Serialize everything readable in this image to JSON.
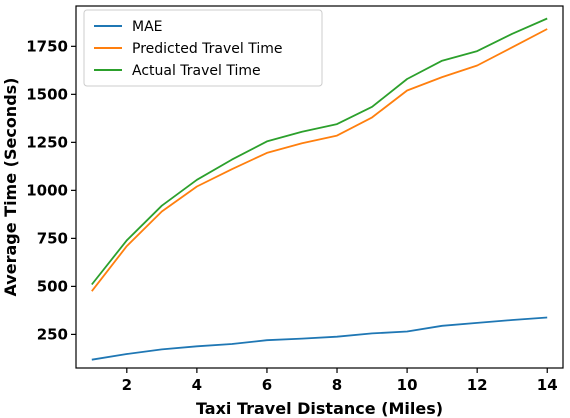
{
  "chart_data": {
    "type": "line",
    "title": "",
    "xlabel": "Taxi Travel Distance (Miles)",
    "ylabel": "Average Time (Seconds)",
    "xlim": [
      0.55,
      14.45
    ],
    "ylim": [
      75,
      1960
    ],
    "xticks": [
      2,
      4,
      6,
      8,
      10,
      12,
      14
    ],
    "yticks": [
      250,
      500,
      750,
      1000,
      1250,
      1500,
      1750
    ],
    "grid": false,
    "legend_position": "top-left",
    "x": [
      1,
      2,
      3,
      4,
      5,
      6,
      7,
      8,
      9,
      10,
      11,
      12,
      13,
      14
    ],
    "series": [
      {
        "name": "MAE",
        "color": "#1f77b4",
        "values": [
          118,
          148,
          172,
          188,
          200,
          220,
          228,
          238,
          255,
          265,
          295,
          310,
          325,
          338
        ]
      },
      {
        "name": "Predicted Travel Time",
        "color": "#ff7f0e",
        "values": [
          475,
          710,
          890,
          1020,
          1110,
          1195,
          1245,
          1285,
          1380,
          1520,
          1590,
          1650,
          1745,
          1840
        ]
      },
      {
        "name": "Actual Travel Time",
        "color": "#2ca02c",
        "values": [
          510,
          740,
          920,
          1055,
          1160,
          1255,
          1305,
          1345,
          1435,
          1580,
          1675,
          1725,
          1815,
          1895
        ]
      }
    ]
  }
}
